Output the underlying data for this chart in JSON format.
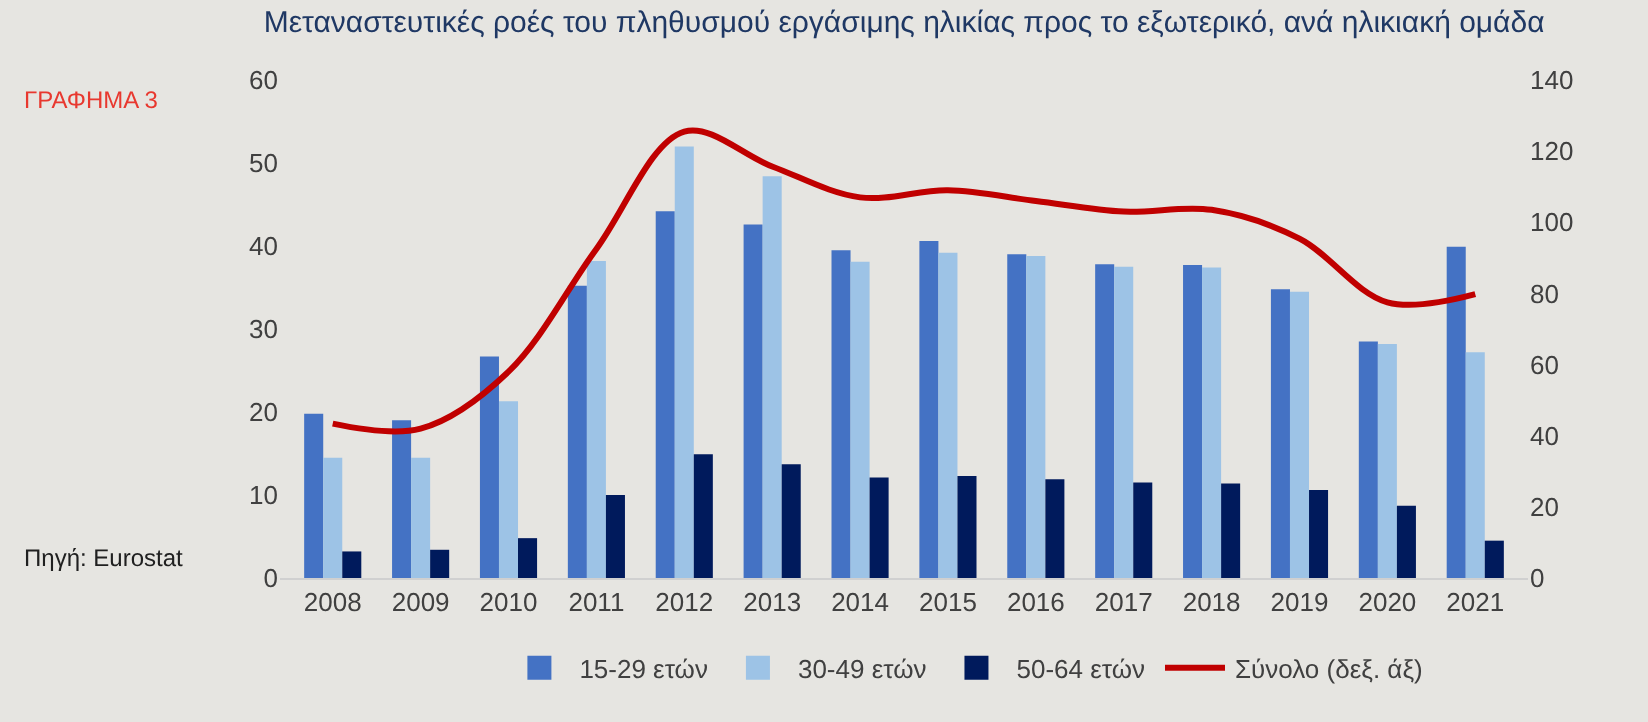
{
  "chart_data": {
    "type": "bar",
    "title": "Μεταναστευτικές ροές του πληθυσμού εργάσιμης ηλικίας προς το εξωτερικό, ανά ηλικιακή ομάδα",
    "categories": [
      "2008",
      "2009",
      "2010",
      "2011",
      "2012",
      "2013",
      "2014",
      "2015",
      "2016",
      "2017",
      "2018",
      "2019",
      "2020",
      "2021"
    ],
    "series": [
      {
        "name": "15-29 ετών",
        "color": "#4472c4",
        "values": [
          19.8,
          19,
          26.7,
          35.2,
          44.2,
          42.6,
          39.5,
          40.6,
          39,
          37.8,
          37.7,
          34.8,
          28.5,
          39.9
        ]
      },
      {
        "name": "30-49 ετών",
        "color": "#9dc3e6",
        "values": [
          14.5,
          14.5,
          21.3,
          38.2,
          52,
          48.4,
          38.1,
          39.2,
          38.8,
          37.5,
          37.4,
          34.5,
          28.2,
          27.2
        ]
      },
      {
        "name": "50-64 ετών",
        "color": "#001a5c",
        "values": [
          3.2,
          3.4,
          4.8,
          10,
          14.9,
          13.7,
          12.1,
          12.3,
          11.9,
          11.5,
          11.4,
          10.6,
          8.7,
          4.5
        ]
      },
      {
        "name": "Σύνολο (δεξ. άξ)",
        "color": "#c00000",
        "type": "line",
        "axis": "y2",
        "values": [
          43.4,
          42,
          58,
          92.5,
          125.5,
          115.7,
          107,
          109,
          106,
          103,
          103.5,
          95.4,
          77.5,
          79.8
        ]
      }
    ],
    "ylim": [
      0,
      60
    ],
    "yticks": [
      0,
      10,
      20,
      30,
      40,
      50,
      60
    ],
    "y2lim": [
      0,
      140
    ],
    "y2ticks": [
      0,
      20,
      40,
      60,
      80,
      100,
      120,
      140
    ],
    "grid": false,
    "legend": "bottom",
    "marker": "none",
    "annotations": [
      "ΓΡΑΦΗΜΑ 3",
      "Πηγή: Eurostat"
    ]
  }
}
